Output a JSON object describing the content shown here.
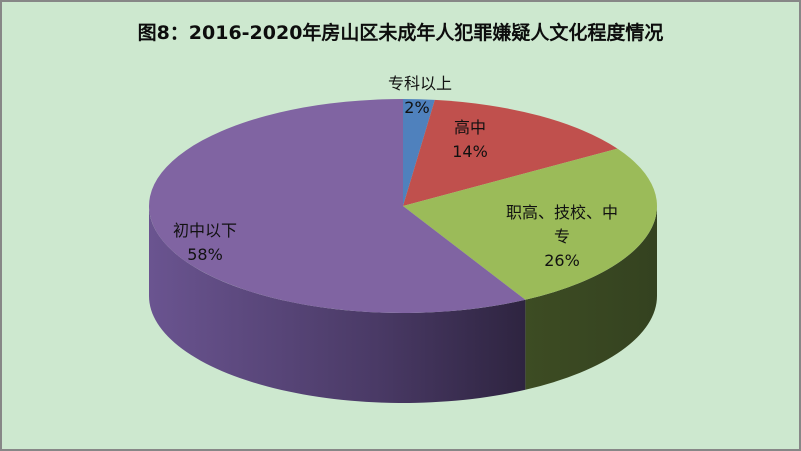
{
  "chart_data": {
    "type": "pie",
    "style": "3d",
    "title": "图8：2016-2020年房山区未成年人犯罪嫌疑人文化程度情况",
    "categories": [
      "专科以上",
      "高中",
      "职高、技校、中专",
      "初中以下"
    ],
    "values": [
      2,
      14,
      26,
      58
    ],
    "unit": "%",
    "colors": [
      "#4f81bd",
      "#c0504d",
      "#9bbb59",
      "#8064a2"
    ],
    "side_colors": [
      "#2c4d75",
      "#772c2a",
      "#3d4c23",
      "#4a3a61"
    ],
    "start_angle": "12 o'clock",
    "direction": "clockwise",
    "legend": "none (data labels)",
    "labels": [
      {
        "name": "专科以上",
        "pct": "2%"
      },
      {
        "name": "高中",
        "pct": "14%"
      },
      {
        "name": "职高、技校、中",
        "name2": "专",
        "pct": "26%"
      },
      {
        "name": "初中以下",
        "pct": "58%"
      }
    ]
  },
  "background": "#cde8cf",
  "border": "#878787"
}
